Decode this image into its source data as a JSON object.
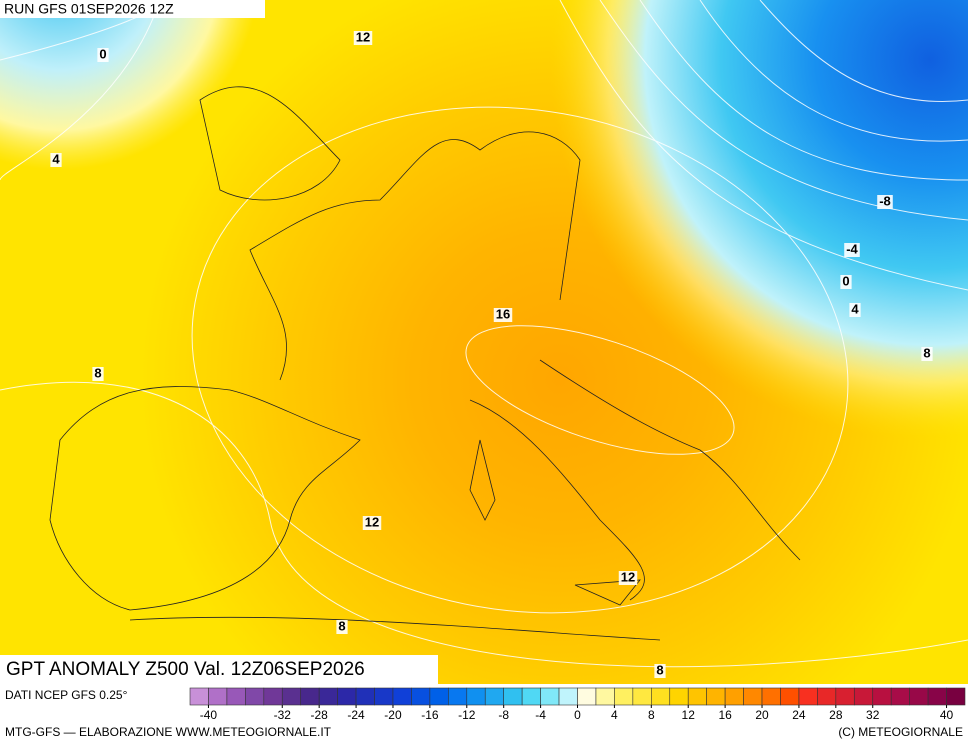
{
  "header": {
    "run": "RUN GFS 01SEP2026 12Z"
  },
  "map": {
    "contour_labels": [
      "12",
      "0",
      "4",
      "-8",
      "-4",
      "0",
      "4",
      "8",
      "16",
      "8",
      "12",
      "12",
      "8",
      "8"
    ]
  },
  "title": "GPT ANOMALY Z500 Val. 12Z06SEP2026",
  "footer": {
    "source": "DATI NCEP GFS 0.25°",
    "credit": "MTG-GFS — ELABORAZIONE WWW.METEOGIORNALE.IT",
    "copyright": "(C) METEOGIORNALE"
  },
  "legend": {
    "range": [
      -42,
      42
    ],
    "ticks": [
      -40,
      -32,
      -28,
      -24,
      -20,
      -16,
      -12,
      -8,
      -4,
      0,
      4,
      8,
      12,
      16,
      20,
      24,
      28,
      32,
      40
    ],
    "colors": [
      "#c890d8",
      "#b070c8",
      "#9858b8",
      "#8048a8",
      "#703898",
      "#5a3090",
      "#48288c",
      "#3a2898",
      "#2c28a8",
      "#2030b8",
      "#1838c8",
      "#1040d8",
      "#0850e0",
      "#0060e8",
      "#0878f0",
      "#1090f0",
      "#20a8f0",
      "#30c0f0",
      "#50d8f4",
      "#80e8f8",
      "#c0f4fc",
      "#fffce0",
      "#fff8a0",
      "#fff060",
      "#ffe840",
      "#ffe020",
      "#ffd400",
      "#ffc400",
      "#ffb400",
      "#ffa000",
      "#ff8800",
      "#ff7000",
      "#ff5000",
      "#f83020",
      "#e82828",
      "#d82030",
      "#c81838",
      "#b81040",
      "#a80c48",
      "#980848",
      "#880448",
      "#780040"
    ]
  }
}
